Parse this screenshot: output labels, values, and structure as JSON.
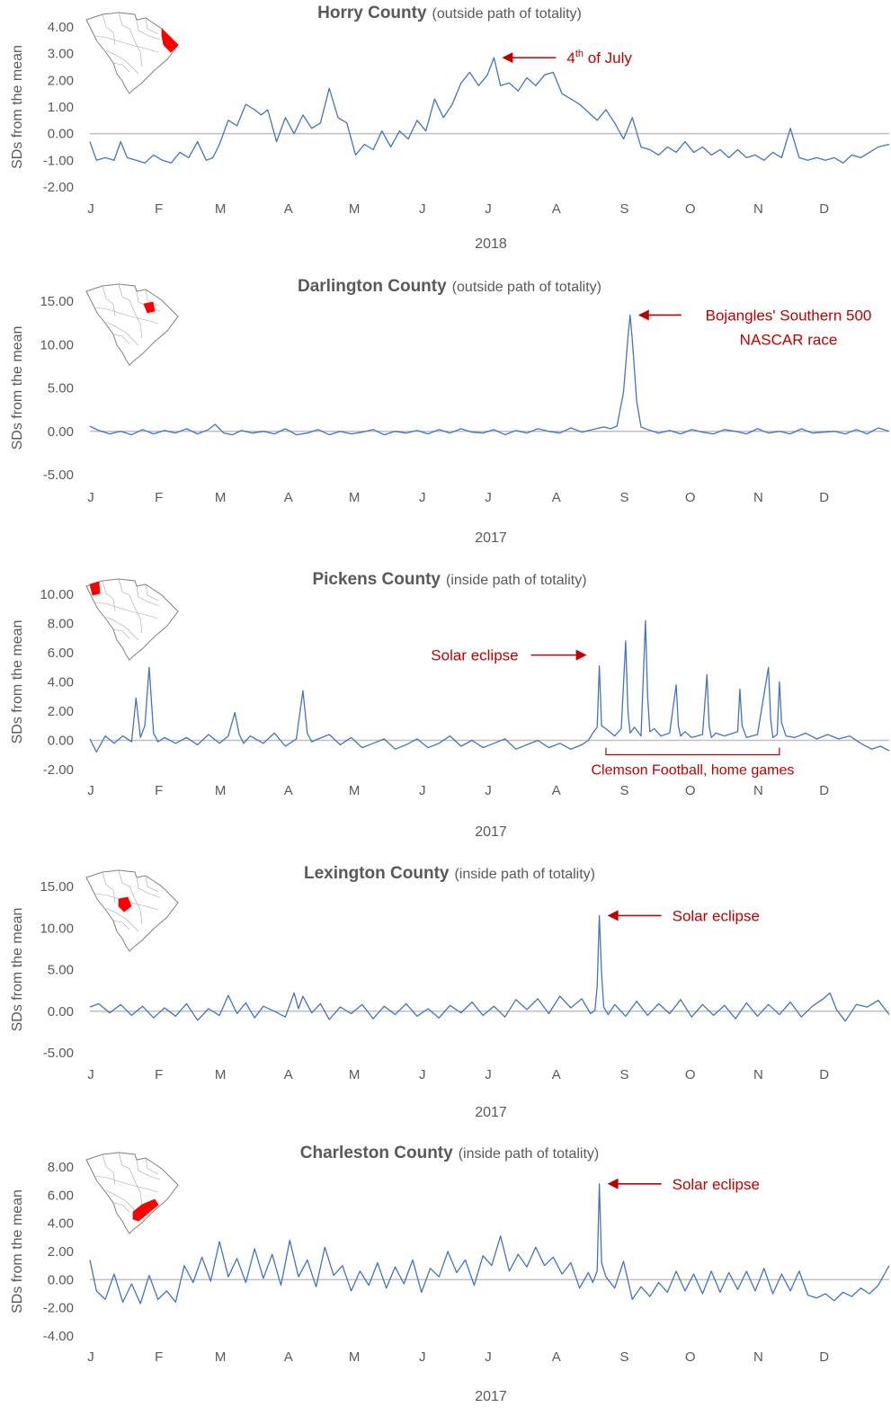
{
  "colors": {
    "line": "#4472C4",
    "annotation": "#C00000",
    "axis": "#BFBFBF",
    "text": "#595959",
    "highlight": "#FF0000"
  },
  "months": [
    "J",
    "F",
    "M",
    "A",
    "M",
    "J",
    "J",
    "A",
    "S",
    "O",
    "N",
    "D"
  ],
  "ylabel": "SDs from the mean",
  "chart_data": [
    {
      "type": "line",
      "county": "Horry County",
      "subtitle": "(outside path of totality)",
      "year": "2018",
      "ylabel": "SDs from the mean",
      "ylim": [
        -2,
        4
      ],
      "ytick_step": 1,
      "yticks": [
        "4.00",
        "3.00",
        "2.00",
        "1.00",
        "0.00",
        "-1.00",
        "-2.00"
      ],
      "map_region": "horry",
      "events": [
        {
          "label": "4th of July",
          "main": "4",
          "sup": "th",
          "rest": " of July",
          "day": 185,
          "value": 2.85,
          "direction": "left"
        }
      ],
      "x_unit": "day of year",
      "series": [
        {
          "x": [
            1,
            4,
            8,
            12,
            15,
            18,
            22,
            26,
            30,
            34,
            38,
            42,
            46,
            50,
            54,
            57,
            60,
            64,
            68,
            72,
            76,
            79,
            82,
            86,
            90,
            94,
            98,
            102,
            106,
            110,
            114,
            118,
            122,
            126,
            130,
            134,
            138,
            142,
            146,
            150,
            154,
            158,
            162,
            166,
            170,
            174,
            178,
            182,
            185,
            188,
            192,
            196,
            200,
            204,
            208,
            212,
            216,
            220,
            224,
            228,
            232,
            236,
            240,
            244,
            248,
            252,
            256,
            260,
            264,
            268,
            272,
            276,
            280,
            284,
            288,
            292,
            296,
            300,
            304,
            308,
            312,
            316,
            320,
            324,
            328,
            332,
            336,
            340,
            344,
            348,
            352,
            356,
            360,
            365
          ],
          "values": [
            -0.3,
            -1.0,
            -0.9,
            -1.0,
            -0.3,
            -0.9,
            -1.0,
            -1.1,
            -0.8,
            -1.0,
            -1.1,
            -0.7,
            -0.9,
            -0.3,
            -1.0,
            -0.9,
            -0.4,
            0.5,
            0.3,
            1.1,
            0.9,
            0.7,
            0.9,
            -0.3,
            0.6,
            0.0,
            0.7,
            0.2,
            0.4,
            1.7,
            0.6,
            0.4,
            -0.8,
            -0.4,
            -0.6,
            0.1,
            -0.5,
            0.1,
            -0.2,
            0.5,
            0.1,
            1.3,
            0.6,
            1.1,
            1.9,
            2.3,
            1.8,
            2.2,
            2.85,
            1.8,
            1.9,
            1.6,
            2.1,
            1.8,
            2.2,
            2.3,
            1.5,
            1.3,
            1.1,
            0.8,
            0.5,
            0.9,
            0.4,
            -0.2,
            0.6,
            -0.5,
            -0.6,
            -0.8,
            -0.5,
            -0.7,
            -0.3,
            -0.7,
            -0.5,
            -0.8,
            -0.6,
            -0.9,
            -0.6,
            -0.9,
            -0.8,
            -1.0,
            -0.7,
            -0.9,
            0.2,
            -0.9,
            -1.0,
            -0.9,
            -1.0,
            -0.9,
            -1.1,
            -0.8,
            -0.9,
            -0.7,
            -0.5,
            -0.4
          ]
        }
      ]
    },
    {
      "type": "line",
      "county": "Darlington County",
      "subtitle": "(outside path of totality)",
      "year": "2017",
      "ylabel": "SDs from the mean",
      "ylim": [
        -5,
        15
      ],
      "ytick_step": 5,
      "yticks": [
        "15.00",
        "10.00",
        "5.00",
        "0.00",
        "-5.00"
      ],
      "map_region": "darlington",
      "events": [
        {
          "label": "Bojangles' Southern 500",
          "label2": "NASCAR race",
          "day": 247,
          "value": 13.4,
          "direction": "left"
        }
      ],
      "x_unit": "day of year",
      "series": [
        {
          "x": [
            1,
            5,
            10,
            15,
            20,
            25,
            30,
            35,
            40,
            45,
            50,
            55,
            58,
            62,
            66,
            70,
            75,
            80,
            85,
            90,
            95,
            100,
            105,
            110,
            115,
            120,
            125,
            130,
            135,
            140,
            145,
            150,
            155,
            160,
            165,
            170,
            175,
            180,
            185,
            190,
            195,
            200,
            205,
            210,
            215,
            220,
            225,
            230,
            235,
            238,
            241,
            244,
            246,
            247,
            248,
            250,
            252,
            255,
            260,
            265,
            270,
            275,
            280,
            285,
            290,
            295,
            300,
            305,
            310,
            315,
            320,
            325,
            330,
            335,
            340,
            345,
            350,
            355,
            360,
            365
          ],
          "values": [
            0.6,
            0.1,
            -0.3,
            0.0,
            -0.4,
            0.2,
            -0.3,
            0.1,
            -0.2,
            0.3,
            -0.3,
            0.2,
            0.8,
            -0.2,
            -0.4,
            0.1,
            -0.2,
            0.0,
            -0.3,
            0.3,
            -0.4,
            -0.2,
            0.2,
            -0.4,
            0.0,
            -0.3,
            -0.1,
            0.2,
            -0.4,
            0.0,
            -0.2,
            0.1,
            -0.3,
            0.2,
            -0.2,
            0.3,
            -0.1,
            -0.2,
            0.2,
            -0.4,
            0.1,
            -0.2,
            0.3,
            0.0,
            -0.2,
            0.4,
            -0.1,
            0.2,
            0.5,
            0.3,
            0.6,
            4.5,
            10.8,
            13.4,
            10.5,
            3.5,
            0.5,
            0.2,
            -0.2,
            0.1,
            -0.3,
            0.2,
            -0.1,
            -0.3,
            0.2,
            0.0,
            -0.3,
            0.3,
            -0.2,
            0.0,
            -0.3,
            0.3,
            -0.2,
            -0.1,
            0.0,
            -0.3,
            0.2,
            -0.3,
            0.4,
            0.0
          ]
        }
      ]
    },
    {
      "type": "line",
      "county": "Pickens County",
      "subtitle": "(inside path of totality)",
      "year": "2017",
      "ylabel": "SDs from the mean",
      "ylim": [
        -2,
        10
      ],
      "ytick_step": 2,
      "yticks": [
        "10.00",
        "8.00",
        "6.00",
        "4.00",
        "2.00",
        "0.00",
        "-2.00"
      ],
      "map_region": "pickens",
      "events": [
        {
          "label": "Solar eclipse",
          "day": 233,
          "value": 5.1,
          "direction": "right"
        }
      ],
      "bracket": {
        "label": "Clemson Football, home games",
        "start_day": 236,
        "end_day": 315
      },
      "x_unit": "day of year",
      "series": [
        {
          "x": [
            1,
            4,
            8,
            12,
            16,
            20,
            22,
            24,
            26,
            28,
            30,
            32,
            35,
            40,
            45,
            50,
            55,
            60,
            64,
            67,
            69,
            71,
            74,
            80,
            85,
            90,
            95,
            98,
            100,
            102,
            105,
            110,
            115,
            120,
            125,
            130,
            135,
            140,
            145,
            150,
            155,
            160,
            165,
            170,
            175,
            180,
            185,
            190,
            195,
            200,
            205,
            210,
            215,
            220,
            225,
            228,
            230,
            232,
            233,
            234,
            236,
            240,
            243,
            245,
            246,
            247,
            249,
            252,
            254,
            255,
            256,
            258,
            261,
            265,
            268,
            269,
            270,
            272,
            275,
            280,
            282,
            283,
            284,
            286,
            290,
            296,
            297,
            298,
            300,
            305,
            310,
            311,
            312,
            314,
            315,
            316,
            318,
            322,
            327,
            332,
            337,
            342,
            347,
            352,
            357,
            361,
            365
          ],
          "values": [
            0.1,
            -0.8,
            0.3,
            -0.2,
            0.3,
            -0.1,
            2.9,
            0.2,
            1.0,
            5.0,
            0.5,
            -0.1,
            0.2,
            -0.2,
            0.2,
            -0.3,
            0.4,
            -0.2,
            0.3,
            1.9,
            0.4,
            -0.2,
            0.3,
            -0.2,
            0.5,
            -0.4,
            0.1,
            3.4,
            0.5,
            -0.1,
            0.1,
            0.4,
            -0.3,
            0.2,
            -0.5,
            -0.2,
            0.1,
            -0.6,
            -0.3,
            0.1,
            -0.5,
            -0.2,
            0.3,
            -0.4,
            0.0,
            -0.5,
            -0.2,
            0.1,
            -0.6,
            -0.3,
            0.0,
            -0.5,
            -0.2,
            -0.6,
            -0.3,
            0.0,
            0.5,
            0.9,
            5.1,
            1.0,
            0.8,
            0.3,
            0.8,
            6.8,
            2.0,
            0.5,
            0.9,
            0.3,
            8.2,
            3.0,
            0.6,
            0.8,
            0.3,
            0.5,
            3.8,
            1.0,
            0.3,
            0.6,
            0.2,
            0.4,
            4.5,
            1.0,
            0.2,
            0.5,
            0.3,
            0.6,
            3.5,
            1.0,
            0.2,
            0.4,
            5.0,
            1.5,
            0.2,
            0.4,
            4.0,
            1.2,
            0.3,
            0.2,
            0.5,
            0.1,
            0.4,
            0.1,
            0.3,
            -0.2,
            -0.6,
            -0.4,
            -0.7
          ]
        }
      ]
    },
    {
      "type": "line",
      "county": "Lexington County",
      "subtitle": "(inside path of totality)",
      "year": "2017",
      "ylabel": "SDs from the mean",
      "ylim": [
        -5,
        15
      ],
      "ytick_step": 5,
      "yticks": [
        "15.00",
        "10.00",
        "5.00",
        "0.00",
        "-5.00"
      ],
      "map_region": "lexington",
      "events": [
        {
          "label": "Solar eclipse",
          "day": 233,
          "value": 11.5,
          "direction": "left"
        }
      ],
      "x_unit": "day of year",
      "series": [
        {
          "x": [
            1,
            5,
            10,
            15,
            20,
            25,
            30,
            35,
            40,
            45,
            50,
            55,
            60,
            64,
            68,
            72,
            76,
            80,
            85,
            90,
            94,
            96,
            98,
            102,
            106,
            110,
            115,
            120,
            125,
            130,
            135,
            140,
            145,
            150,
            155,
            160,
            165,
            170,
            175,
            180,
            185,
            190,
            195,
            200,
            205,
            210,
            215,
            220,
            225,
            229,
            231,
            232,
            233,
            234,
            235,
            237,
            240,
            245,
            250,
            255,
            260,
            265,
            270,
            275,
            280,
            285,
            290,
            295,
            300,
            305,
            310,
            315,
            320,
            325,
            330,
            335,
            338,
            341,
            345,
            350,
            355,
            360,
            365
          ],
          "values": [
            0.5,
            0.9,
            -0.2,
            0.8,
            -0.5,
            0.6,
            -0.8,
            0.4,
            -0.6,
            0.9,
            -1.1,
            0.3,
            -0.5,
            1.9,
            -0.3,
            1.0,
            -0.8,
            0.6,
            0.0,
            -0.7,
            2.2,
            0.3,
            1.8,
            -0.2,
            0.9,
            -1.0,
            0.5,
            -0.3,
            0.8,
            -0.9,
            0.6,
            -0.4,
            0.9,
            -0.6,
            0.3,
            -0.8,
            0.7,
            -0.2,
            1.1,
            -0.5,
            0.6,
            -0.7,
            1.4,
            0.2,
            1.5,
            -0.3,
            1.8,
            0.4,
            1.5,
            -0.3,
            0.1,
            3.0,
            11.5,
            4.5,
            0.5,
            -0.4,
            0.8,
            -0.6,
            1.2,
            -0.5,
            0.9,
            -0.3,
            1.4,
            -0.7,
            0.8,
            -0.5,
            0.7,
            -0.9,
            1.0,
            -0.6,
            0.8,
            -0.4,
            1.1,
            -0.7,
            0.6,
            1.5,
            2.2,
            0.2,
            -1.2,
            0.8,
            0.5,
            1.3,
            -0.4
          ]
        }
      ]
    },
    {
      "type": "line",
      "county": "Charleston County",
      "subtitle": "(inside path of totality)",
      "year": "2017",
      "ylabel": "SDs from the mean",
      "ylim": [
        -4,
        8
      ],
      "ytick_step": 2,
      "yticks": [
        "8.00",
        "6.00",
        "4.00",
        "2.00",
        "0.00",
        "-2.00",
        "-4.00"
      ],
      "map_region": "charleston",
      "events": [
        {
          "label": "Solar eclipse",
          "day": 233,
          "value": 6.8,
          "direction": "left"
        }
      ],
      "x_unit": "day of year",
      "series": [
        {
          "x": [
            1,
            4,
            8,
            12,
            16,
            20,
            24,
            28,
            32,
            36,
            40,
            44,
            48,
            52,
            56,
            60,
            64,
            68,
            72,
            76,
            80,
            84,
            88,
            92,
            96,
            100,
            104,
            108,
            112,
            116,
            120,
            124,
            128,
            132,
            136,
            140,
            144,
            148,
            152,
            156,
            160,
            164,
            168,
            172,
            176,
            180,
            184,
            188,
            192,
            196,
            200,
            204,
            208,
            212,
            216,
            220,
            224,
            228,
            230,
            232,
            233,
            234,
            236,
            240,
            244,
            248,
            252,
            256,
            260,
            264,
            268,
            272,
            276,
            280,
            284,
            288,
            292,
            296,
            300,
            304,
            308,
            312,
            316,
            320,
            324,
            328,
            332,
            336,
            340,
            344,
            348,
            352,
            356,
            360,
            365
          ],
          "values": [
            1.4,
            -0.8,
            -1.4,
            0.4,
            -1.6,
            -0.3,
            -1.7,
            0.3,
            -1.4,
            -0.8,
            -1.6,
            1.0,
            -0.2,
            1.6,
            -0.1,
            2.7,
            0.2,
            1.5,
            -0.2,
            2.2,
            0.1,
            1.8,
            -0.4,
            2.8,
            0.2,
            1.4,
            -0.5,
            2.3,
            0.3,
            1.0,
            -0.8,
            0.6,
            -0.4,
            1.2,
            -0.6,
            0.9,
            -0.3,
            1.4,
            -0.9,
            0.8,
            0.2,
            2.0,
            0.5,
            1.4,
            -0.4,
            1.7,
            1.0,
            3.1,
            0.6,
            1.8,
            0.9,
            2.3,
            1.0,
            1.6,
            0.4,
            1.2,
            -0.6,
            0.5,
            -0.2,
            0.6,
            6.8,
            1.2,
            0.2,
            -0.6,
            1.3,
            -1.4,
            -0.5,
            -1.2,
            -0.2,
            -0.9,
            0.6,
            -0.8,
            0.4,
            -1.0,
            0.6,
            -0.9,
            0.5,
            -0.7,
            0.6,
            -0.8,
            0.8,
            -1.0,
            0.4,
            -0.8,
            0.6,
            -1.1,
            -1.3,
            -1.0,
            -1.5,
            -0.9,
            -1.2,
            -0.6,
            -1.0,
            -0.4,
            1.0
          ]
        }
      ]
    }
  ]
}
